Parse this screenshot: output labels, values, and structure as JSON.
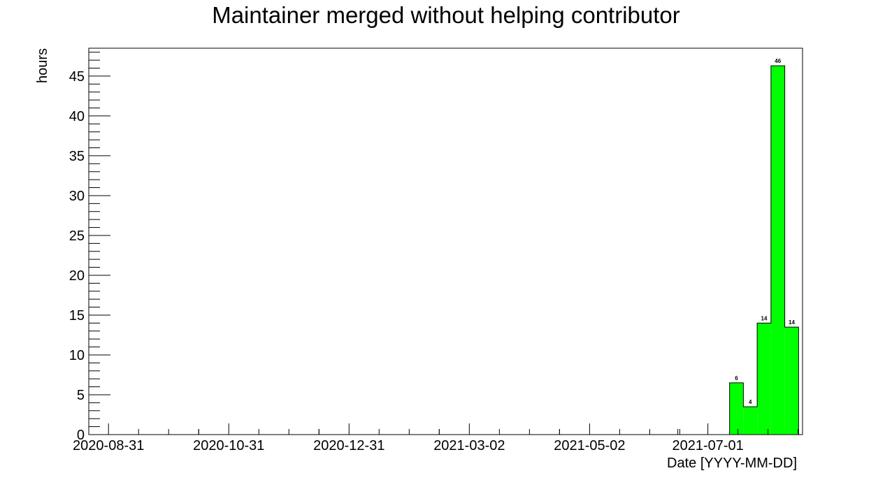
{
  "chart_data": {
    "type": "bar",
    "title": "Maintainer merged without helping contributor",
    "xlabel": "Date [YYYY-MM-DD]",
    "ylabel": "hours",
    "x_axis_type": "date",
    "xlim": [
      "2020-08-21",
      "2021-08-18"
    ],
    "ylim": [
      0,
      48.5
    ],
    "x_ticks": [
      "2020-08-31",
      "2020-10-31",
      "2020-12-31",
      "2021-03-02",
      "2021-05-02",
      "2021-07-01"
    ],
    "y_ticks": [
      0,
      5,
      10,
      15,
      20,
      25,
      30,
      35,
      40,
      45
    ],
    "grid": false,
    "legend": "none",
    "bar_color": "#00ff00",
    "bar_outline_color": "#000000",
    "style": "step-histogram",
    "bins": [
      {
        "start": "2021-07-12",
        "end": "2021-07-19",
        "value": 6.5,
        "label": "6"
      },
      {
        "start": "2021-07-19",
        "end": "2021-07-26",
        "value": 3.5,
        "label": "4"
      },
      {
        "start": "2021-07-26",
        "end": "2021-08-02",
        "value": 14.0,
        "label": "14"
      },
      {
        "start": "2021-08-02",
        "end": "2021-08-09",
        "value": 46.3,
        "label": "46"
      },
      {
        "start": "2021-08-09",
        "end": "2021-08-16",
        "value": 13.5,
        "label": "14"
      }
    ]
  }
}
